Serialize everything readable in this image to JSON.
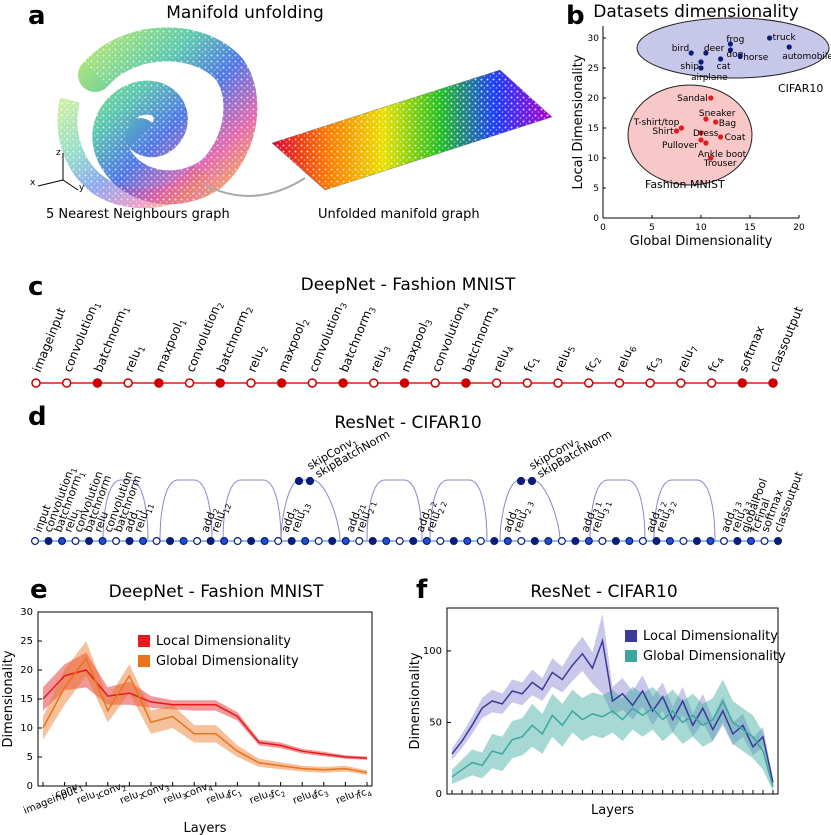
{
  "panels": {
    "a": {
      "letter": "a",
      "title": "Manifold unfolding",
      "left_caption": "5 Nearest Neighbours graph",
      "right_caption": "Unfolded manifold graph",
      "axes": [
        "z",
        "x",
        "y"
      ]
    },
    "b": {
      "letter": "b",
      "title": "Datasets dimensionality"
    },
    "c": {
      "letter": "c",
      "title": "DeepNet - Fashion MNIST"
    },
    "d": {
      "letter": "d",
      "title": "ResNet - CIFAR10"
    },
    "e": {
      "letter": "e",
      "title": "DeepNet - Fashion MNIST"
    },
    "f": {
      "letter": "f",
      "title": "ResNet - CIFAR10"
    }
  },
  "colors": {
    "red": "#e41a1c",
    "darkred": "#cc0000",
    "orange": "#e8741e",
    "navy": "#0a1d7a",
    "purple": "#3a3a9a",
    "teal": "#3aa8a0",
    "lavender": "#c7c7ea"
  },
  "chart_data": [
    {
      "type": "scatter",
      "title": "Datasets dimensionality",
      "xlabel": "Global Dimensionality",
      "ylabel": "Local Dimensionality",
      "xlim": [
        0,
        20
      ],
      "ylim": [
        0,
        32
      ],
      "xticks": [
        "0",
        "5",
        "10",
        "15",
        "20"
      ],
      "yticks": [
        "0",
        "5",
        "10",
        "15",
        "20",
        "25",
        "30"
      ],
      "groups": [
        {
          "name": "CIFAR10",
          "color": "#0a1d7a",
          "points": [
            {
              "label": "truck",
              "x": 17,
              "y": 30
            },
            {
              "label": "automobile",
              "x": 19,
              "y": 28.5
            },
            {
              "label": "frog",
              "x": 13,
              "y": 29
            },
            {
              "label": "dog",
              "x": 13,
              "y": 28
            },
            {
              "label": "horse",
              "x": 14,
              "y": 27
            },
            {
              "label": "cat",
              "x": 12,
              "y": 26.5
            },
            {
              "label": "deer",
              "x": 10.5,
              "y": 27.5
            },
            {
              "label": "bird",
              "x": 9,
              "y": 27.5
            },
            {
              "label": "ship",
              "x": 10,
              "y": 26
            },
            {
              "label": "airplane",
              "x": 10,
              "y": 25
            }
          ]
        },
        {
          "name": "Fashion MNIST",
          "color": "#e41a1c",
          "points": [
            {
              "label": "Sandal",
              "x": 11,
              "y": 20
            },
            {
              "label": "Sneaker",
              "x": 10.5,
              "y": 16.5
            },
            {
              "label": "Bag",
              "x": 11.5,
              "y": 16
            },
            {
              "label": "T-shirt/top",
              "x": 8,
              "y": 15
            },
            {
              "label": "Shirt",
              "x": 7.5,
              "y": 14.5
            },
            {
              "label": "Dress",
              "x": 10,
              "y": 14.2
            },
            {
              "label": "Coat",
              "x": 12,
              "y": 13.5
            },
            {
              "label": "Pullover",
              "x": 10,
              "y": 13
            },
            {
              "label": "Ankle boot",
              "x": 10.5,
              "y": 12.5
            },
            {
              "label": "Trouser",
              "x": 11,
              "y": 10
            }
          ]
        }
      ]
    },
    {
      "type": "line",
      "title": "DeepNet - Fashion MNIST",
      "xlabel": "Layers",
      "ylabel": "Dimensionality",
      "ylim": [
        0,
        30
      ],
      "yticks": [
        "0",
        "5",
        "10",
        "15",
        "20",
        "25",
        "30"
      ],
      "categories": [
        "imageinput",
        "conv 1",
        "relu 1",
        "conv 2",
        "relu 2",
        "conv 3",
        "relu 3",
        "conv 4",
        "relu 4",
        "fc 1",
        "relu 5",
        "fc 2",
        "relu 6",
        "fc 3",
        "relu 7",
        "fc 4"
      ],
      "legend": "top-right",
      "series": [
        {
          "name": "Local Dimensionality",
          "color": "#e41a1c",
          "values": [
            15,
            19,
            20,
            15.5,
            16,
            14.5,
            14,
            14,
            14,
            12,
            7.5,
            7,
            6,
            5.5,
            5,
            4.8
          ],
          "lower": [
            13,
            16.5,
            17,
            14,
            14,
            13.5,
            13.2,
            13,
            13,
            11.3,
            7,
            6.5,
            5.6,
            5.1,
            4.7,
            4.5
          ],
          "upper": [
            17,
            21,
            23,
            17,
            18,
            15.5,
            14.8,
            14.8,
            14.8,
            12.7,
            8,
            7.5,
            6.4,
            5.9,
            5.3,
            5.1
          ]
        },
        {
          "name": "Global Dimensionality",
          "color": "#e8741e",
          "values": [
            10,
            17,
            22,
            13,
            19,
            11,
            12,
            9,
            9,
            6,
            4,
            3.5,
            3,
            2.8,
            3,
            2.3
          ],
          "lower": [
            8,
            14,
            19,
            11,
            16,
            9,
            10,
            7.5,
            7.5,
            5,
            3.3,
            2.9,
            2.5,
            2.3,
            2.5,
            1.9
          ],
          "upper": [
            12,
            20,
            25,
            15,
            21,
            13,
            14,
            10.5,
            10.5,
            7,
            4.7,
            4.1,
            3.5,
            3.3,
            3.5,
            2.7
          ]
        }
      ]
    },
    {
      "type": "line",
      "title": "ResNet - CIFAR10",
      "xlabel": "Layers",
      "ylabel": "Dimensionality",
      "ylim": [
        0,
        130
      ],
      "yticks": [
        "0",
        "50",
        "100"
      ],
      "x_count": 33,
      "legend": "top-right",
      "series": [
        {
          "name": "Local Dimensionality",
          "color": "#3a3a9a",
          "values": [
            28,
            37,
            48,
            60,
            65,
            63,
            72,
            70,
            78,
            73,
            85,
            80,
            90,
            98,
            88,
            107,
            65,
            70,
            62,
            72,
            58,
            68,
            52,
            65,
            48,
            60,
            45,
            58,
            42,
            48,
            33,
            40,
            8
          ],
          "lower": [
            24,
            32,
            42,
            53,
            57,
            56,
            64,
            62,
            69,
            65,
            75,
            71,
            79,
            86,
            77,
            70,
            55,
            59,
            52,
            61,
            48,
            58,
            43,
            55,
            40,
            50,
            37,
            48,
            34,
            40,
            27,
            33,
            5
          ],
          "upper": [
            32,
            42,
            54,
            67,
            73,
            70,
            80,
            78,
            87,
            81,
            95,
            89,
            101,
            110,
            99,
            126,
            75,
            81,
            72,
            83,
            68,
            78,
            61,
            75,
            56,
            70,
            53,
            68,
            50,
            56,
            39,
            47,
            11
          ]
        },
        {
          "name": "Global Dimensionality",
          "color": "#3aa8a0",
          "values": [
            12,
            17,
            22,
            20,
            30,
            28,
            38,
            40,
            48,
            42,
            55,
            48,
            58,
            52,
            56,
            54,
            58,
            52,
            60,
            55,
            60,
            52,
            58,
            50,
            55,
            48,
            52,
            65,
            50,
            45,
            40,
            30,
            5
          ],
          "lower": [
            7,
            10,
            13,
            11,
            18,
            16,
            25,
            27,
            33,
            28,
            40,
            33,
            43,
            37,
            41,
            39,
            43,
            37,
            45,
            40,
            45,
            37,
            43,
            35,
            40,
            33,
            37,
            50,
            35,
            30,
            25,
            17,
            2
          ],
          "upper": [
            17,
            24,
            31,
            29,
            42,
            40,
            51,
            53,
            63,
            56,
            70,
            63,
            73,
            67,
            71,
            69,
            73,
            67,
            75,
            70,
            75,
            67,
            73,
            65,
            70,
            63,
            67,
            80,
            65,
            60,
            55,
            43,
            8
          ]
        }
      ]
    }
  ],
  "deepnet_layers": {
    "labels": [
      {
        "b": "imageinput",
        "s": ""
      },
      {
        "b": "convolution",
        "s": "1"
      },
      {
        "b": "batchnorm",
        "s": "1"
      },
      {
        "b": "relu",
        "s": "1"
      },
      {
        "b": "maxpool",
        "s": "1"
      },
      {
        "b": "convolution",
        "s": "2"
      },
      {
        "b": "batchnorm",
        "s": "2"
      },
      {
        "b": "relu",
        "s": "2"
      },
      {
        "b": "maxpool",
        "s": "2"
      },
      {
        "b": "convolution",
        "s": "3"
      },
      {
        "b": "batchnorm",
        "s": "3"
      },
      {
        "b": "relu",
        "s": "3"
      },
      {
        "b": "maxpool",
        "s": "3"
      },
      {
        "b": "convolution",
        "s": "4"
      },
      {
        "b": "batchnorm",
        "s": "4"
      },
      {
        "b": "relu",
        "s": "4"
      },
      {
        "b": "fc",
        "s": "1"
      },
      {
        "b": "relu",
        "s": "5"
      },
      {
        "b": "fc",
        "s": "2"
      },
      {
        "b": "relu",
        "s": "6"
      },
      {
        "b": "fc",
        "s": "3"
      },
      {
        "b": "relu",
        "s": "7"
      },
      {
        "b": "fc",
        "s": "4"
      },
      {
        "b": "softmax",
        "s": ""
      },
      {
        "b": "classoutput",
        "s": ""
      }
    ],
    "filled": [
      0,
      0,
      1,
      0,
      1,
      0,
      1,
      0,
      1,
      0,
      1,
      0,
      1,
      0,
      1,
      0,
      0,
      0,
      0,
      0,
      0,
      0,
      0,
      1,
      1
    ]
  },
  "resnet_layers": {
    "labels": [
      {
        "b": "input",
        "s": ""
      },
      {
        "b": "convolution",
        "s": "1"
      },
      {
        "b": "batchnorm",
        "s": "1"
      },
      {
        "b": "relu",
        "s": "1"
      },
      {
        "b": "convolution",
        "s": ""
      },
      {
        "b": "batchnorm",
        "s": ""
      },
      {
        "b": "relu",
        "s": ""
      },
      {
        "b": "convolution",
        "s": ""
      },
      {
        "b": "batchnorm",
        "s": ""
      },
      {
        "b": "add",
        "s": "1"
      },
      {
        "b": "relu",
        "s": "11"
      },
      {
        "b": "add",
        "s": "2"
      },
      {
        "b": "relu",
        "s": "12"
      },
      {
        "b": "add",
        "s": "3"
      },
      {
        "b": "relu",
        "s": "13"
      },
      {
        "b": "add",
        "s": "21"
      },
      {
        "b": "relu",
        "s": "2 1"
      },
      {
        "b": "add",
        "s": "2 2"
      },
      {
        "b": "relu",
        "s": "2 2"
      },
      {
        "b": "add",
        "s": "3"
      },
      {
        "b": "relu",
        "s": "2 3"
      },
      {
        "b": "add",
        "s": "3 1"
      },
      {
        "b": "relu",
        "s": "3 1"
      },
      {
        "b": "add",
        "s": "3 2"
      },
      {
        "b": "relu",
        "s": "3 2"
      },
      {
        "b": "add",
        "s": "3 3"
      },
      {
        "b": "relu",
        "s": "3 3"
      },
      {
        "b": "globalPool",
        "s": ""
      },
      {
        "b": "fcFinal",
        "s": ""
      },
      {
        "b": "softmax",
        "s": ""
      },
      {
        "b": "classoutput",
        "s": ""
      }
    ],
    "skip1": [
      "skipConv",
      "1",
      "skipBatchNorm"
    ],
    "skip2": [
      "skipConv",
      "2",
      "skipBatchNorm"
    ]
  }
}
